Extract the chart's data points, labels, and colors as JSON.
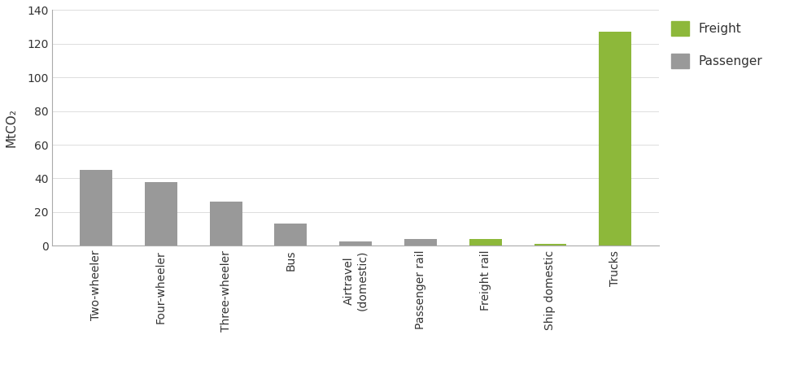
{
  "categories": [
    "Two-wheeler",
    "Four-wheeler",
    "Three-wheeler",
    "Bus",
    "Airtravel\n(domestic)",
    "Passenger rail",
    "Freight rail",
    "Ship domestic",
    "Trucks"
  ],
  "values": [
    45,
    38,
    26,
    13,
    2.5,
    4,
    4,
    1,
    127
  ],
  "colors": [
    "#999999",
    "#999999",
    "#999999",
    "#999999",
    "#999999",
    "#999999",
    "#8db83a",
    "#8db83a",
    "#8db83a"
  ],
  "ylabel": "MtCO₂",
  "ylim": [
    0,
    140
  ],
  "yticks": [
    0,
    20,
    40,
    60,
    80,
    100,
    120,
    140
  ],
  "legend_freight_color": "#8db83a",
  "legend_passenger_color": "#999999",
  "legend_freight_label": "Freight",
  "legend_passenger_label": "Passenger",
  "background_color": "#ffffff",
  "bar_width": 0.5
}
